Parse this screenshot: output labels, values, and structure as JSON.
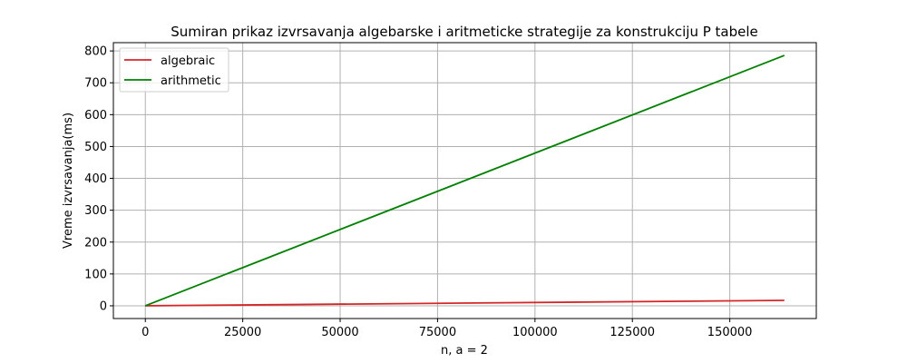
{
  "chart_data": {
    "type": "line",
    "title": "Sumiran prikaz izvrsavanja algebarske i aritmeticke strategije za konstrukciju P tabele",
    "xlabel": "n, a = 2",
    "ylabel": "Vreme izvrsavanja(ms)",
    "xlim": [
      -8200,
      172200
    ],
    "ylim": [
      -40,
      826
    ],
    "xticks": [
      0,
      25000,
      50000,
      75000,
      100000,
      125000,
      150000
    ],
    "xtick_labels": [
      "0",
      "25000",
      "50000",
      "75000",
      "100000",
      "125000",
      "150000"
    ],
    "yticks": [
      0,
      100,
      200,
      300,
      400,
      500,
      600,
      700,
      800
    ],
    "ytick_labels": [
      "0",
      "100",
      "200",
      "300",
      "400",
      "500",
      "600",
      "700",
      "800"
    ],
    "grid": true,
    "legend_position": "top-left",
    "series": [
      {
        "name": "algebraic",
        "color": "#d62728",
        "x": [
          0,
          164000
        ],
        "y": [
          0,
          17
        ]
      },
      {
        "name": "arithmetic",
        "color": "#008000",
        "x": [
          0,
          164000
        ],
        "y": [
          0,
          786
        ]
      }
    ]
  }
}
